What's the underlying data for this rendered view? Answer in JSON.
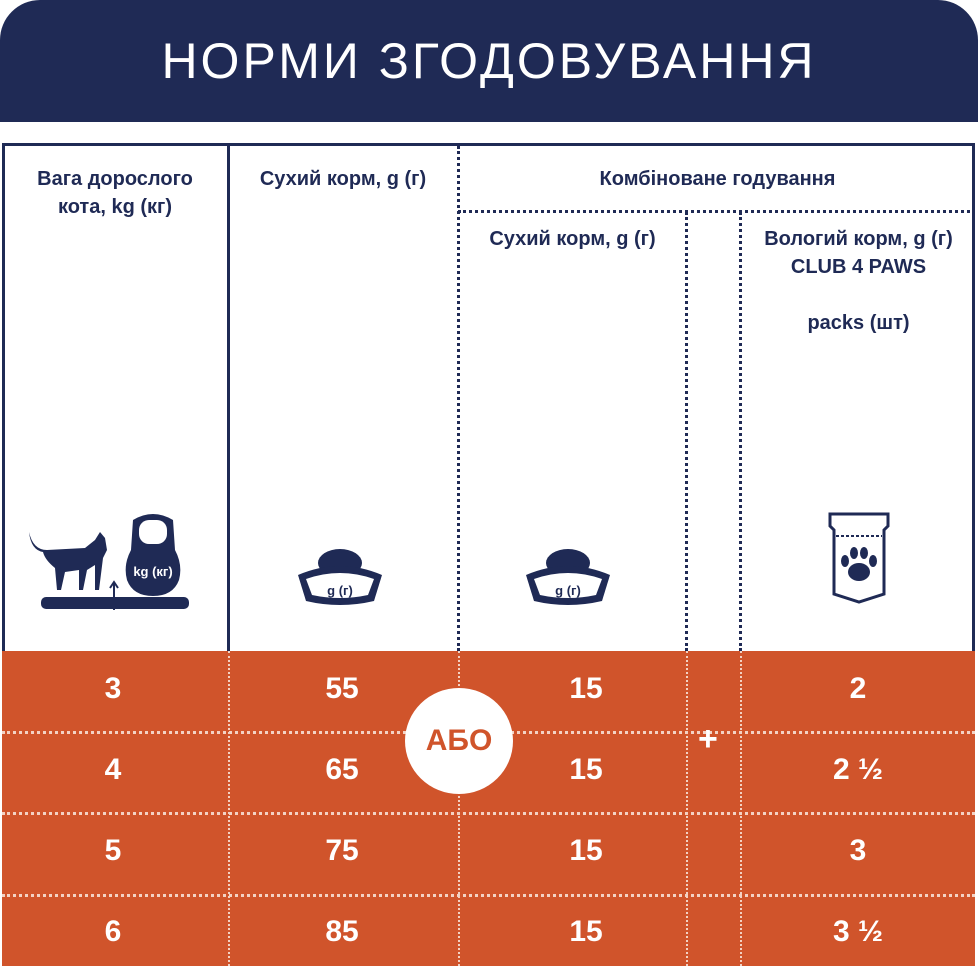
{
  "title": "НОРМИ ЗГОДОВУВАННЯ",
  "headers": {
    "weight": "Вага дорослого кота, kg (кг)",
    "dry": "Сухий корм, g (г)",
    "combined": "Комбіноване годування",
    "combined_dry": "Сухий корм, g (г)",
    "wet_line1": "Вологий корм, g (г)",
    "wet_line2": "CLUB 4 PAWS",
    "wet_line3": "packs (шт)"
  },
  "icons": {
    "kettlebell_label": "kg (кг)",
    "bowl_label": "g (г)"
  },
  "or_label": "АБО",
  "plus_label": "+",
  "rows": [
    {
      "weight": "3",
      "dry": "55",
      "combined_dry": "15",
      "wet": "2"
    },
    {
      "weight": "4",
      "dry": "65",
      "combined_dry": "15",
      "wet": "2 ½"
    },
    {
      "weight": "5",
      "dry": "75",
      "combined_dry": "15",
      "wet": "3"
    },
    {
      "weight": "6",
      "dry": "85",
      "combined_dry": "15",
      "wet": "3 ½"
    }
  ],
  "colors": {
    "navy": "#1f2a55",
    "orange": "#d0542b"
  }
}
